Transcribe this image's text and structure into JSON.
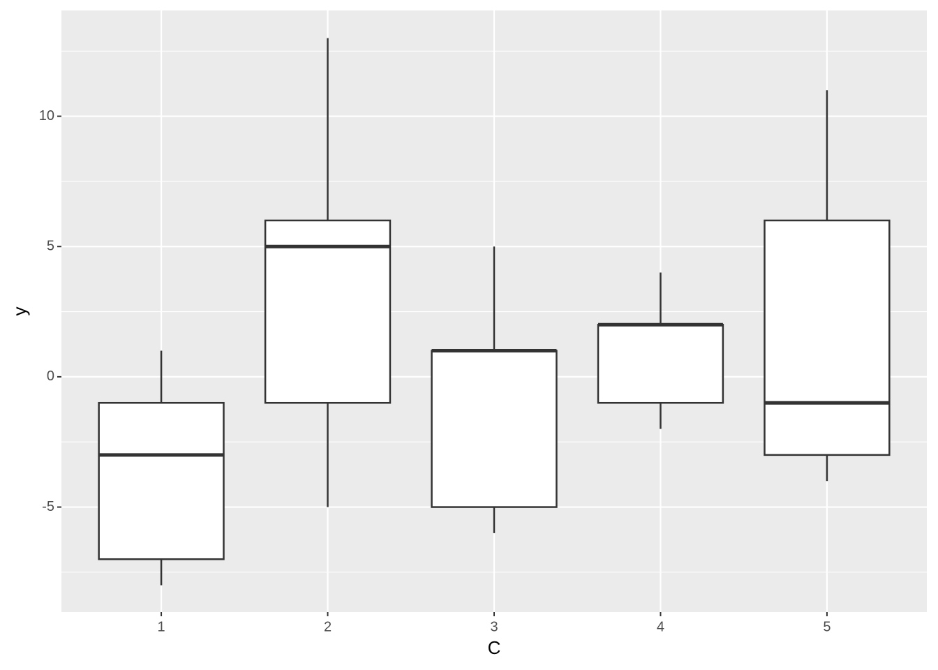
{
  "chart_data": {
    "type": "boxplot",
    "x_label": "C",
    "y_label": "y",
    "categories": [
      "1",
      "2",
      "3",
      "4",
      "5"
    ],
    "boxes": [
      {
        "min": -8,
        "q1": -7,
        "median": -3,
        "q3": -1,
        "max": 1
      },
      {
        "min": -5,
        "q1": -1,
        "median": 5,
        "q3": 6,
        "max": 13
      },
      {
        "min": -6,
        "q1": -5,
        "median": 1,
        "q3": 1,
        "max": 5
      },
      {
        "min": -2,
        "q1": -1,
        "median": 2,
        "q3": 2,
        "max": 4
      },
      {
        "min": -4,
        "q1": -3,
        "median": -1,
        "q3": 6,
        "max": 11
      }
    ],
    "color": "#333333",
    "fill": "#ffffff",
    "ylim": [
      -9.03,
      14.06
    ],
    "yticks": [
      -5,
      0,
      5,
      10
    ],
    "minor_yticks": [
      -7.5,
      -2.5,
      2.5,
      7.5,
      12.5
    ],
    "grid": true
  }
}
